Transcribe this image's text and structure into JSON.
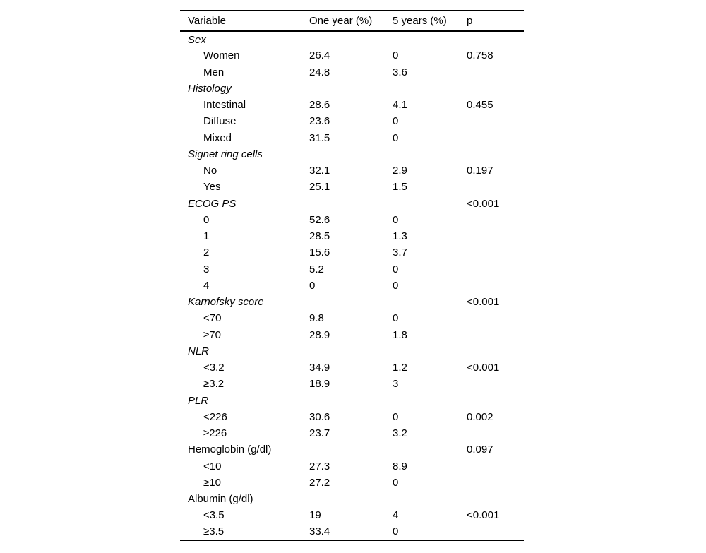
{
  "colors": {
    "background": "#ffffff",
    "text": "#000000",
    "rule": "#000000"
  },
  "table": {
    "columns": [
      "Variable",
      "One year (%)",
      "5 years (%)",
      "p"
    ],
    "rows": [
      {
        "label": "Sex",
        "indent": false,
        "italic": true,
        "one_year": "",
        "five_years": "",
        "p": ""
      },
      {
        "label": "Women",
        "indent": true,
        "italic": false,
        "one_year": "26.4",
        "five_years": "0",
        "p": "0.758"
      },
      {
        "label": "Men",
        "indent": true,
        "italic": false,
        "one_year": "24.8",
        "five_years": "3.6",
        "p": ""
      },
      {
        "label": "Histology",
        "indent": false,
        "italic": true,
        "one_year": "",
        "five_years": "",
        "p": ""
      },
      {
        "label": "Intestinal",
        "indent": true,
        "italic": false,
        "one_year": "28.6",
        "five_years": "4.1",
        "p": "0.455"
      },
      {
        "label": "Diffuse",
        "indent": true,
        "italic": false,
        "one_year": "23.6",
        "five_years": "0",
        "p": ""
      },
      {
        "label": "Mixed",
        "indent": true,
        "italic": false,
        "one_year": "31.5",
        "five_years": "0",
        "p": ""
      },
      {
        "label": "Signet ring cells",
        "indent": false,
        "italic": true,
        "one_year": "",
        "five_years": "",
        "p": ""
      },
      {
        "label": "No",
        "indent": true,
        "italic": false,
        "one_year": "32.1",
        "five_years": "2.9",
        "p": "0.197"
      },
      {
        "label": "Yes",
        "indent": true,
        "italic": false,
        "one_year": "25.1",
        "five_years": "1.5",
        "p": ""
      },
      {
        "label": "ECOG PS",
        "indent": false,
        "italic": true,
        "one_year": "",
        "five_years": "",
        "p": "<0.001"
      },
      {
        "label": "0",
        "indent": true,
        "italic": false,
        "one_year": "52.6",
        "five_years": "0",
        "p": ""
      },
      {
        "label": "1",
        "indent": true,
        "italic": false,
        "one_year": "28.5",
        "five_years": "1.3",
        "p": ""
      },
      {
        "label": "2",
        "indent": true,
        "italic": false,
        "one_year": "15.6",
        "five_years": "3.7",
        "p": ""
      },
      {
        "label": "3",
        "indent": true,
        "italic": false,
        "one_year": "5.2",
        "five_years": "0",
        "p": ""
      },
      {
        "label": "4",
        "indent": true,
        "italic": false,
        "one_year": "0",
        "five_years": "0",
        "p": ""
      },
      {
        "label": "Karnofsky score",
        "indent": false,
        "italic": true,
        "one_year": "",
        "five_years": "",
        "p": "<0.001"
      },
      {
        "label": "<70",
        "indent": true,
        "italic": false,
        "one_year": "9.8",
        "five_years": "0",
        "p": ""
      },
      {
        "label": "≥70",
        "indent": true,
        "italic": false,
        "one_year": "28.9",
        "five_years": "1.8",
        "p": ""
      },
      {
        "label": "NLR",
        "indent": false,
        "italic": true,
        "one_year": "",
        "five_years": "",
        "p": ""
      },
      {
        "label": "<3.2",
        "indent": true,
        "italic": false,
        "one_year": "34.9",
        "five_years": "1.2",
        "p": "<0.001"
      },
      {
        "label": "≥3.2",
        "indent": true,
        "italic": false,
        "one_year": "18.9",
        "five_years": "3",
        "p": ""
      },
      {
        "label": "PLR",
        "indent": false,
        "italic": true,
        "one_year": "",
        "five_years": "",
        "p": ""
      },
      {
        "label": "<226",
        "indent": true,
        "italic": false,
        "one_year": "30.6",
        "five_years": "0",
        "p": "0.002"
      },
      {
        "label": "≥226",
        "indent": true,
        "italic": false,
        "one_year": "23.7",
        "five_years": "3.2",
        "p": ""
      },
      {
        "label": "Hemoglobin (g/dl)",
        "indent": false,
        "italic": false,
        "one_year": "",
        "five_years": "",
        "p": "0.097"
      },
      {
        "label": "<10",
        "indent": true,
        "italic": false,
        "one_year": "27.3",
        "five_years": "8.9",
        "p": ""
      },
      {
        "label": "≥10",
        "indent": true,
        "italic": false,
        "one_year": "27.2",
        "five_years": "0",
        "p": ""
      },
      {
        "label": "Albumin (g/dl)",
        "indent": false,
        "italic": false,
        "one_year": "",
        "five_years": "",
        "p": ""
      },
      {
        "label": "<3.5",
        "indent": true,
        "italic": false,
        "one_year": "19",
        "five_years": "4",
        "p": "<0.001"
      },
      {
        "label": "≥3.5",
        "indent": true,
        "italic": false,
        "one_year": "33.4",
        "five_years": "0",
        "p": ""
      }
    ]
  }
}
